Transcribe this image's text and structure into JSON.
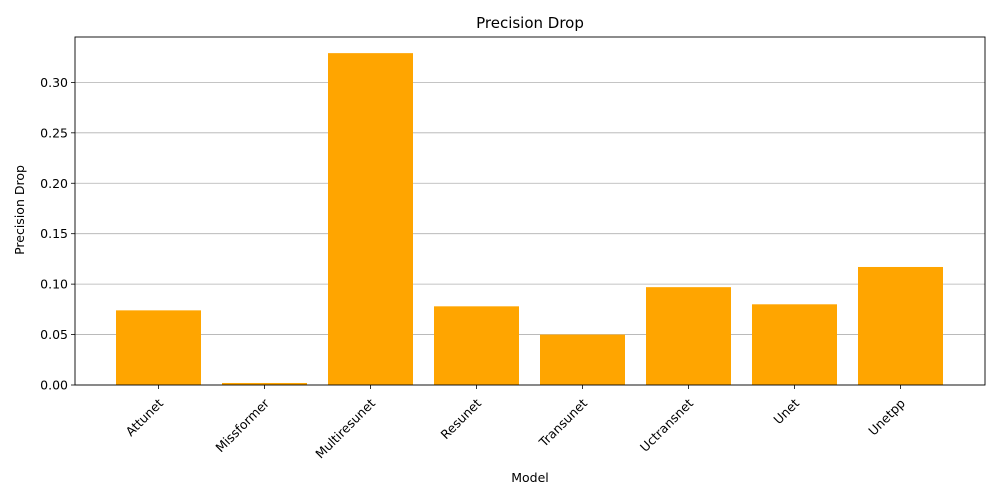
{
  "chart_data": {
    "type": "bar",
    "title": "Precision Drop",
    "xlabel": "Model",
    "ylabel": "Precision Drop",
    "categories": [
      "Attunet",
      "Missformer",
      "Multiresunet",
      "Resunet",
      "Transunet",
      "Uctransnet",
      "Unet",
      "Unetpp"
    ],
    "values": [
      0.074,
      0.002,
      0.329,
      0.078,
      0.05,
      0.097,
      0.08,
      0.117
    ],
    "ylim": [
      0,
      0.345
    ],
    "yticks": [
      0.0,
      0.05,
      0.1,
      0.15,
      0.2,
      0.25,
      0.3
    ],
    "ytick_labels": [
      "0.00",
      "0.05",
      "0.10",
      "0.15",
      "0.20",
      "0.25",
      "0.30"
    ],
    "grid": "y",
    "xtick_rotation": 45,
    "bar_color": "#ffa500",
    "grid_color": "#b0b0b0",
    "axis_color": "#000000"
  }
}
